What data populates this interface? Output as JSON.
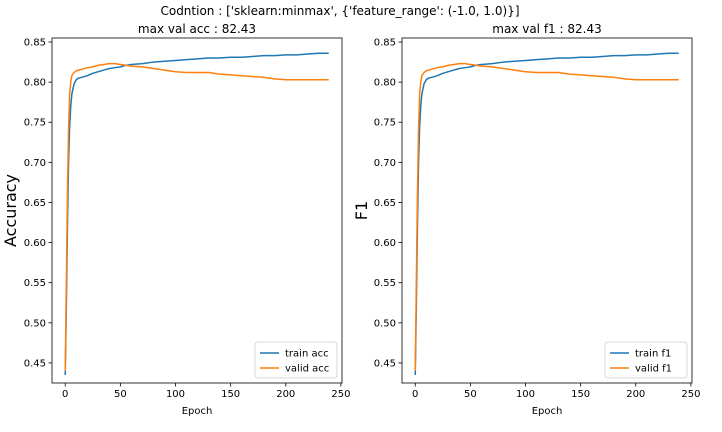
{
  "figure": {
    "suptitle": "Codntion : ['sklearn:minmax', {'feature_range': (-1.0, 1.0)}]"
  },
  "chart_data": [
    {
      "type": "line",
      "title": "max val acc : 82.43",
      "xlabel": "Epoch",
      "ylabel": "Accuracy",
      "xlim": [
        -12,
        251
      ],
      "ylim": [
        0.425,
        0.855
      ],
      "xticks": [
        0,
        50,
        100,
        150,
        200,
        250
      ],
      "yticks": [
        0.45,
        0.5,
        0.55,
        0.6,
        0.65,
        0.7,
        0.75,
        0.8,
        0.85
      ],
      "legend_position": "lower-right",
      "grid": false,
      "series": [
        {
          "name": "train acc",
          "color": "#1f77b4",
          "x": [
            0,
            1,
            2,
            3,
            4,
            5,
            6,
            8,
            10,
            12,
            15,
            20,
            25,
            30,
            35,
            40,
            45,
            50,
            55,
            60,
            70,
            80,
            90,
            100,
            110,
            120,
            130,
            140,
            150,
            160,
            170,
            180,
            190,
            200,
            210,
            220,
            230,
            239
          ],
          "y": [
            0.435,
            0.52,
            0.62,
            0.7,
            0.745,
            0.77,
            0.785,
            0.798,
            0.803,
            0.805,
            0.806,
            0.808,
            0.811,
            0.813,
            0.815,
            0.817,
            0.818,
            0.819,
            0.821,
            0.822,
            0.823,
            0.825,
            0.826,
            0.827,
            0.828,
            0.829,
            0.83,
            0.83,
            0.831,
            0.831,
            0.832,
            0.833,
            0.833,
            0.834,
            0.834,
            0.835,
            0.836,
            0.836
          ]
        },
        {
          "name": "valid acc",
          "color": "#ff7f0e",
          "x": [
            0,
            1,
            2,
            3,
            4,
            5,
            6,
            8,
            10,
            12,
            15,
            20,
            25,
            30,
            35,
            40,
            45,
            50,
            55,
            60,
            70,
            80,
            90,
            100,
            110,
            120,
            130,
            140,
            150,
            160,
            170,
            180,
            190,
            200,
            210,
            220,
            230,
            239
          ],
          "y": [
            0.44,
            0.55,
            0.66,
            0.74,
            0.785,
            0.8,
            0.808,
            0.812,
            0.814,
            0.815,
            0.816,
            0.818,
            0.819,
            0.821,
            0.822,
            0.823,
            0.823,
            0.822,
            0.821,
            0.82,
            0.819,
            0.817,
            0.815,
            0.813,
            0.812,
            0.812,
            0.812,
            0.81,
            0.809,
            0.808,
            0.807,
            0.806,
            0.804,
            0.803,
            0.803,
            0.803,
            0.803,
            0.803
          ]
        }
      ]
    },
    {
      "type": "line",
      "title": "max val f1 : 82.43",
      "xlabel": "Epoch",
      "ylabel": "F1",
      "xlim": [
        -12,
        251
      ],
      "ylim": [
        0.425,
        0.855
      ],
      "xticks": [
        0,
        50,
        100,
        150,
        200,
        250
      ],
      "yticks": [
        0.45,
        0.5,
        0.55,
        0.6,
        0.65,
        0.7,
        0.75,
        0.8,
        0.85
      ],
      "legend_position": "lower-right",
      "grid": false,
      "series": [
        {
          "name": "train f1",
          "color": "#1f77b4",
          "x": [
            0,
            1,
            2,
            3,
            4,
            5,
            6,
            8,
            10,
            12,
            15,
            20,
            25,
            30,
            35,
            40,
            45,
            50,
            55,
            60,
            70,
            80,
            90,
            100,
            110,
            120,
            130,
            140,
            150,
            160,
            170,
            180,
            190,
            200,
            210,
            220,
            230,
            239
          ],
          "y": [
            0.435,
            0.52,
            0.62,
            0.7,
            0.745,
            0.77,
            0.785,
            0.798,
            0.803,
            0.805,
            0.806,
            0.808,
            0.811,
            0.813,
            0.815,
            0.817,
            0.818,
            0.819,
            0.821,
            0.822,
            0.823,
            0.825,
            0.826,
            0.827,
            0.828,
            0.829,
            0.83,
            0.83,
            0.831,
            0.831,
            0.832,
            0.833,
            0.833,
            0.834,
            0.834,
            0.835,
            0.836,
            0.836
          ]
        },
        {
          "name": "valid f1",
          "color": "#ff7f0e",
          "x": [
            0,
            1,
            2,
            3,
            4,
            5,
            6,
            8,
            10,
            12,
            15,
            20,
            25,
            30,
            35,
            40,
            45,
            50,
            55,
            60,
            70,
            80,
            90,
            100,
            110,
            120,
            130,
            140,
            150,
            160,
            170,
            180,
            190,
            200,
            210,
            220,
            230,
            239
          ],
          "y": [
            0.44,
            0.55,
            0.66,
            0.74,
            0.785,
            0.8,
            0.808,
            0.812,
            0.814,
            0.815,
            0.816,
            0.818,
            0.819,
            0.821,
            0.822,
            0.823,
            0.823,
            0.822,
            0.821,
            0.82,
            0.819,
            0.817,
            0.815,
            0.813,
            0.812,
            0.812,
            0.812,
            0.81,
            0.809,
            0.808,
            0.807,
            0.806,
            0.804,
            0.803,
            0.803,
            0.803,
            0.803,
            0.803
          ]
        }
      ]
    }
  ]
}
